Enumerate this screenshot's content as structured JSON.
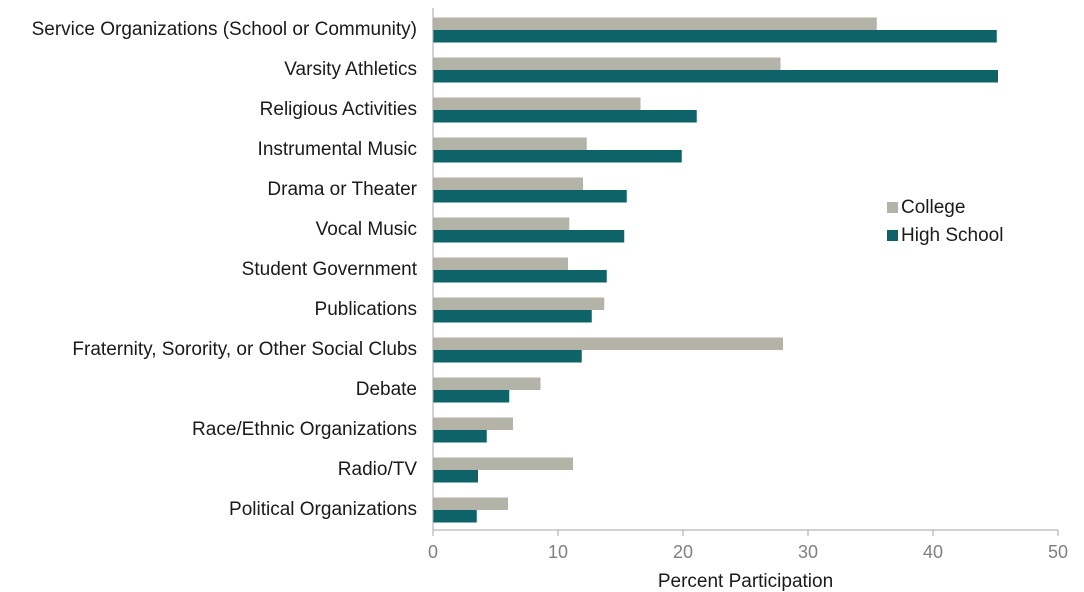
{
  "chart_data": {
    "type": "bar",
    "orientation": "horizontal",
    "categories": [
      "Service Organizations (School or Community)",
      "Varsity Athletics",
      "Religious Activities",
      "Instrumental Music",
      "Drama or Theater",
      "Vocal Music",
      "Student Government",
      "Publications",
      "Fraternity, Sorority, or Other Social Clubs",
      "Debate",
      "Race/Ethnic Organizations",
      "Radio/TV",
      "Political Organizations"
    ],
    "series": [
      {
        "name": "College",
        "color": "#b3b3a8",
        "values": [
          35.5,
          27.8,
          16.6,
          12.3,
          12.0,
          10.9,
          10.8,
          13.7,
          28.0,
          8.6,
          6.4,
          11.2,
          6.0
        ]
      },
      {
        "name": "High School",
        "color": "#0e6368",
        "values": [
          45.1,
          45.2,
          21.1,
          19.9,
          15.5,
          15.3,
          13.9,
          12.7,
          11.9,
          6.1,
          4.3,
          3.6,
          3.5
        ]
      }
    ],
    "xlabel": "Percent Participation",
    "ylabel": "",
    "xlim": [
      0,
      50
    ],
    "xticks": [
      0,
      10,
      20,
      30,
      40,
      50
    ],
    "grid": false,
    "legend_position": "right"
  }
}
